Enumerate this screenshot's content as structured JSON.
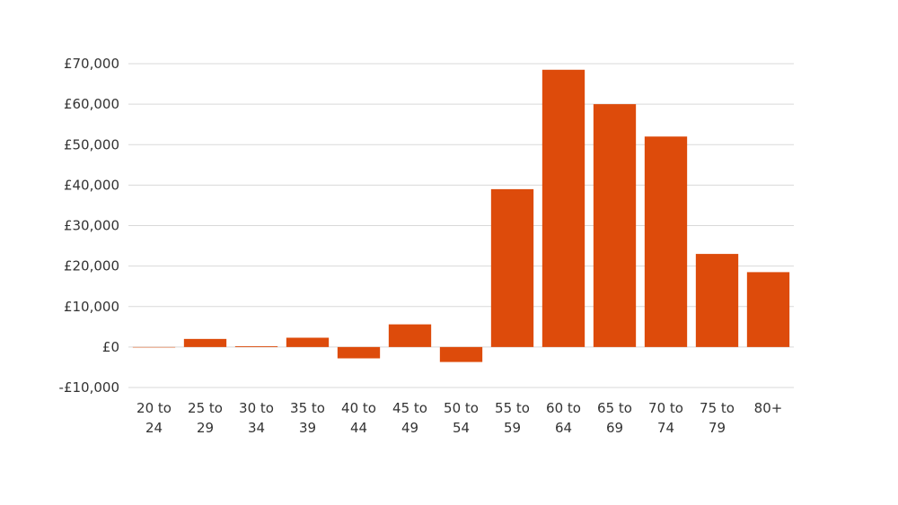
{
  "chart_data": {
    "type": "bar",
    "categories": [
      [
        "20 to",
        "24"
      ],
      [
        "25 to",
        "29"
      ],
      [
        "30 to",
        "34"
      ],
      [
        "35 to",
        "39"
      ],
      [
        "40 to",
        "44"
      ],
      [
        "45 to",
        "49"
      ],
      [
        "50 to",
        "54"
      ],
      [
        "55 to",
        "59"
      ],
      [
        "60 to",
        "64"
      ],
      [
        "65 to",
        "69"
      ],
      [
        "70 to",
        "74"
      ],
      [
        "75 to",
        "79"
      ],
      [
        "80+"
      ]
    ],
    "values": [
      0,
      2000,
      200,
      2300,
      -2800,
      5600,
      -3700,
      39000,
      68500,
      60000,
      52000,
      23000,
      18500
    ],
    "ylim": [
      -10000,
      70000
    ],
    "yticks": [
      -10000,
      0,
      10000,
      20000,
      30000,
      40000,
      50000,
      60000,
      70000
    ],
    "ytick_labels": [
      "-£10,000",
      "£0",
      "£10,000",
      "£20,000",
      "£30,000",
      "£40,000",
      "£50,000",
      "£60,000",
      "£70,000"
    ],
    "grid": true,
    "bar_color": "#dd4b0b"
  }
}
